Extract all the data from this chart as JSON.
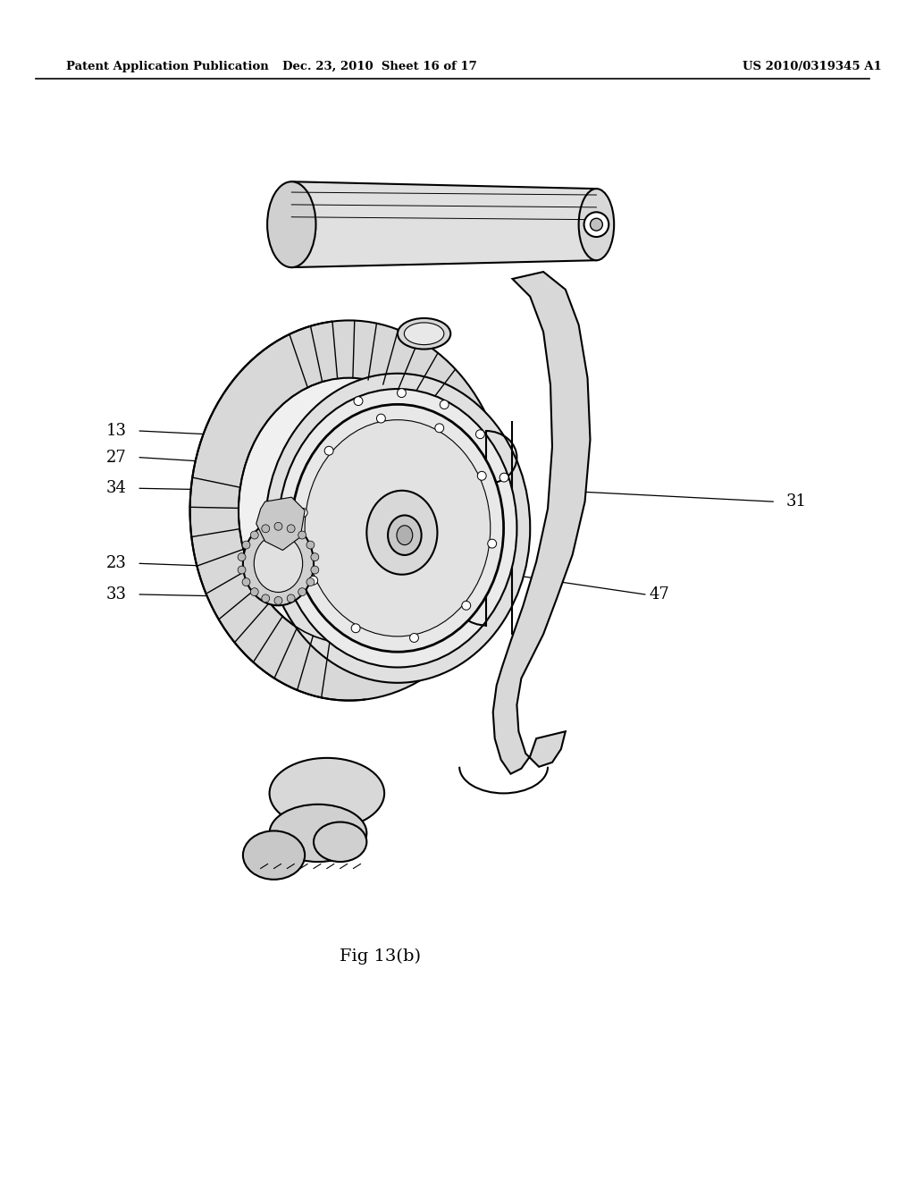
{
  "background_color": "#ffffff",
  "header_left": "Patent Application Publication",
  "header_center": "Dec. 23, 2010  Sheet 16 of 17",
  "header_right": "US 2010/0319345 A1",
  "figure_label": "Fig 13(b)",
  "line_color": "#000000",
  "text_color": "#000000",
  "light_gray": "#e8e8e8",
  "mid_gray": "#c8c8c8",
  "dark_gray": "#888888"
}
